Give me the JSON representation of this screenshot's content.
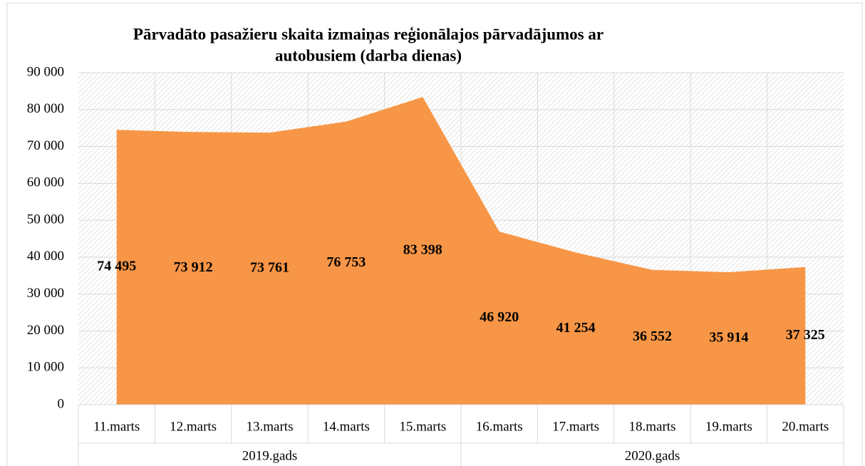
{
  "chart_data": {
    "type": "area",
    "title": [
      "Pārvadāto pasažieru skaita izmaiņas reģionālajos pārvadājumos ar",
      "autobusiem (darba dienas)"
    ],
    "category_groups": [
      {
        "label": "2019.gads",
        "categories": [
          "11.marts",
          "12.marts",
          "13.marts",
          "14.marts",
          "15.marts"
        ]
      },
      {
        "label": "2020.gads",
        "categories": [
          "16.marts",
          "17.marts",
          "18.marts",
          "19.marts",
          "20.marts"
        ]
      }
    ],
    "values": [
      74495,
      73912,
      73761,
      76753,
      83398,
      46920,
      41254,
      36552,
      35914,
      37325
    ],
    "value_labels": [
      "74 495",
      "73 912",
      "73 761",
      "76 753",
      "83 398",
      "46 920",
      "41 254",
      "36 552",
      "35 914",
      "37 325"
    ],
    "color": "#f79646",
    "ylim": [
      0,
      90000
    ],
    "yticks": [
      0,
      {
        "value": 10000,
        "label": "10 000"
      },
      {
        "value": 20000,
        "label": "20 000"
      },
      {
        "value": 30000,
        "label": "30 000"
      },
      {
        "value": 40000,
        "label": "40 000"
      },
      {
        "value": 50000,
        "label": "50 000"
      },
      {
        "value": 60000,
        "label": "60 000"
      },
      {
        "value": 70000,
        "label": "70 000"
      },
      {
        "value": 80000,
        "label": "80 000"
      },
      {
        "value": 90000,
        "label": "90 000"
      }
    ],
    "grid": true
  }
}
